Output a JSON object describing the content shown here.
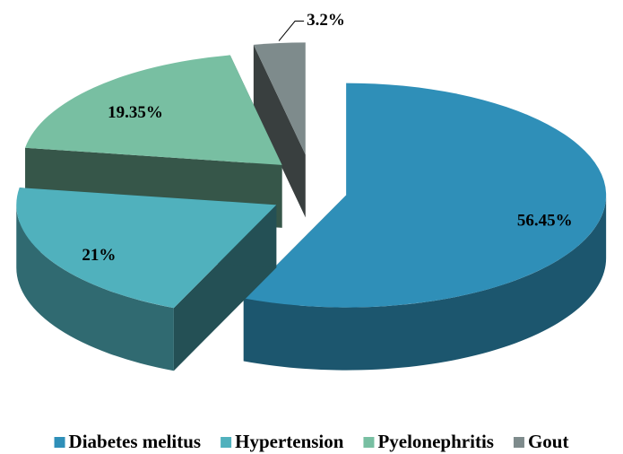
{
  "chart_data": {
    "type": "pie",
    "categories": [
      "Diabetes melitus",
      "Hypertension",
      "Pyelonephritis",
      "Gout"
    ],
    "values": [
      56.45,
      21,
      19.35,
      3.2
    ],
    "value_labels": [
      "56.45%",
      "21%",
      "19.35%",
      "3.2%"
    ],
    "colors": [
      "#2f8fb8",
      "#50b1bd",
      "#78bfa2",
      "#7e8b8c"
    ],
    "legend": "bottom"
  }
}
